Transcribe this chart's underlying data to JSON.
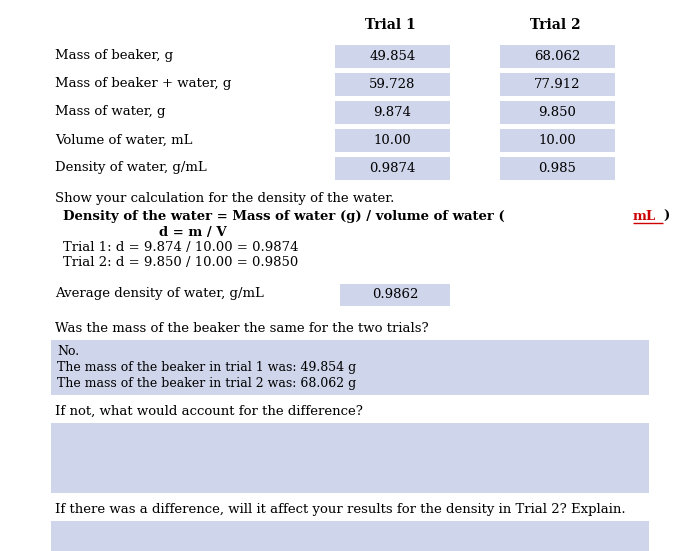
{
  "bg_color": "#ffffff",
  "cell_bg": "#cfd5ea",
  "trial_labels": [
    "Trial 1",
    "Trial 2"
  ],
  "row_labels": [
    "Mass of beaker, g",
    "Mass of beaker + water, g",
    "Mass of water, g",
    "Volume of water, mL",
    "Density of water, g/mL"
  ],
  "trial1_values": [
    "49.854",
    "59.728",
    "9.874",
    "10.00",
    "0.9874"
  ],
  "trial2_values": [
    "68.062",
    "77.912",
    "9.850",
    "10.00",
    "0.985"
  ],
  "calc_header": "Show your calculation for the density of the water.",
  "calc_line1a": "Density of the water = Mass of water (g) / volume of water (",
  "calc_line1b": "mL",
  "calc_line1c": ")",
  "calc_line2": "d = m / V",
  "calc_line3": "Trial 1: d = 9.874 / 10.00 = 0.9874",
  "calc_line4": "Trial 2: d = 9.850 / 10.00 = 0.9850",
  "avg_label": "Average density of water, g/mL",
  "avg_value": "0.9862",
  "q1_label": "Was the mass of the beaker the same for the two trials?",
  "q1_answer_lines": [
    "No.",
    "The mass of the beaker in trial 1 was: 49.854 g",
    "The mass of the beaker in trial 2 was: 68.062 g"
  ],
  "q2_label": "If not, what would account for the difference?",
  "q3_label": "If there was a difference, will it affect your results for the density in Trial 2? Explain."
}
